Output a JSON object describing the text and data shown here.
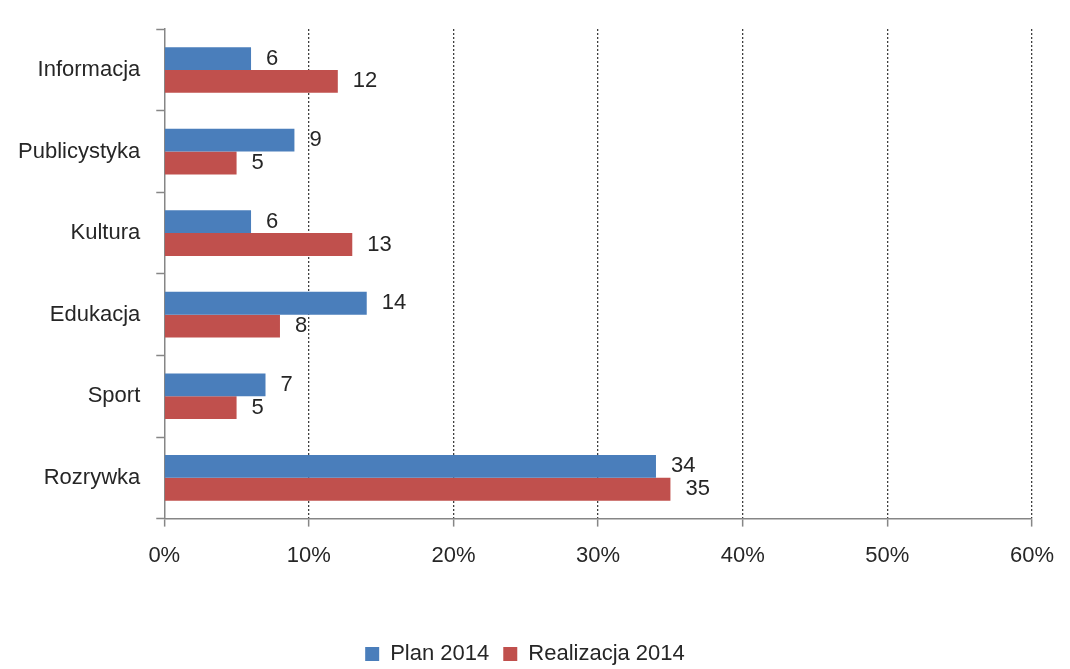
{
  "chart_data": {
    "type": "bar",
    "orientation": "horizontal",
    "categories": [
      "Informacja",
      "Publicystyka",
      "Kultura",
      "Edukacja",
      "Sport",
      "Rozrywka"
    ],
    "series": [
      {
        "name": "Plan 2014",
        "color": "#4a7ebb",
        "values": [
          6,
          9,
          6,
          14,
          7,
          34
        ]
      },
      {
        "name": "Realizacja 2014",
        "color": "#c0504d",
        "values": [
          12,
          5,
          13,
          8,
          5,
          35
        ]
      }
    ],
    "xlim": [
      0,
      60
    ],
    "xticks": [
      {
        "value": 0,
        "label": "0%"
      },
      {
        "value": 10,
        "label": "10%"
      },
      {
        "value": 20,
        "label": "20%"
      },
      {
        "value": 30,
        "label": "30%"
      },
      {
        "value": 40,
        "label": "40%"
      },
      {
        "value": 50,
        "label": "50%"
      },
      {
        "value": 60,
        "label": "60%"
      }
    ],
    "grid": "x",
    "legend": "bottom",
    "data_labels": true
  }
}
